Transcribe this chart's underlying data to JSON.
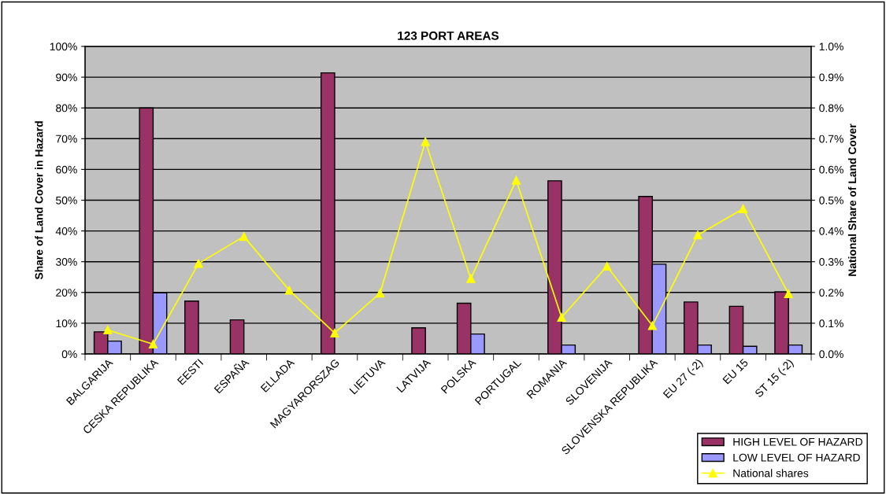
{
  "chart_data": {
    "type": "bar",
    "title": "123 PORT AREAS",
    "ylabel": "Share of Land Cover in Hazard",
    "y2label": "National Share of Land Cover",
    "categories": [
      "BALGARIJA",
      "CESKA REPUBLIKA",
      "EESTI",
      "ESPAÑA",
      "ELLADA",
      "MAGYARORSZAG",
      "LIETUVA",
      "LATVIJA",
      "POLSKA",
      "PORTUGAL",
      "ROMANIA",
      "SLOVENIJA",
      "SLOVENSKA REPUBLIKA",
      "EU 27 (-2)",
      "EU 15",
      "ST 15 (-2)"
    ],
    "series": [
      {
        "name": "HIGH LEVEL OF HAZARD",
        "color": "#993366",
        "values": [
          7.2,
          80,
          17.2,
          11.1,
          null,
          91.4,
          null,
          8.5,
          16.5,
          null,
          56.3,
          null,
          51.2,
          16.9,
          15.5,
          20.2
        ]
      },
      {
        "name": "LOW LEVEL OF HAZARD",
        "color": "#9999ff",
        "values": [
          4.2,
          19.9,
          null,
          null,
          null,
          null,
          null,
          null,
          6.5,
          null,
          2.9,
          null,
          29.2,
          2.9,
          2.5,
          2.9
        ]
      },
      {
        "name": "National shares",
        "type": "line",
        "axis": "y2",
        "color": "#ffff00",
        "marker": "triangle",
        "values": [
          0.078,
          0.032,
          0.294,
          0.382,
          0.207,
          0.068,
          0.198,
          0.69,
          0.245,
          0.565,
          0.119,
          0.285,
          0.092,
          0.387,
          0.472,
          0.196
        ]
      }
    ],
    "ylim": [
      0,
      100
    ],
    "yticks": [
      {
        "value": 0,
        "label": "0%"
      },
      {
        "value": 10,
        "label": "10%"
      },
      {
        "value": 20,
        "label": "20%"
      },
      {
        "value": 30,
        "label": "30%"
      },
      {
        "value": 40,
        "label": "40%"
      },
      {
        "value": 50,
        "label": "50%"
      },
      {
        "value": 60,
        "label": "60%"
      },
      {
        "value": 70,
        "label": "70%"
      },
      {
        "value": 80,
        "label": "80%"
      },
      {
        "value": 90,
        "label": "90%"
      },
      {
        "value": 100,
        "label": "100%"
      }
    ],
    "y2lim": [
      0,
      1
    ],
    "y2ticks": [
      {
        "value": 0,
        "label": "0.0%"
      },
      {
        "value": 0.1,
        "label": "0.1%"
      },
      {
        "value": 0.2,
        "label": "0.2%"
      },
      {
        "value": 0.3,
        "label": "0.3%"
      },
      {
        "value": 0.4,
        "label": "0.4%"
      },
      {
        "value": 0.5,
        "label": "0.5%"
      },
      {
        "value": 0.6,
        "label": "0.6%"
      },
      {
        "value": 0.7,
        "label": "0.7%"
      },
      {
        "value": 0.8,
        "label": "0.8%"
      },
      {
        "value": 0.9,
        "label": "0.9%"
      },
      {
        "value": 1.0,
        "label": "1.0%"
      }
    ],
    "grid": "y",
    "legend": "bottom right"
  }
}
